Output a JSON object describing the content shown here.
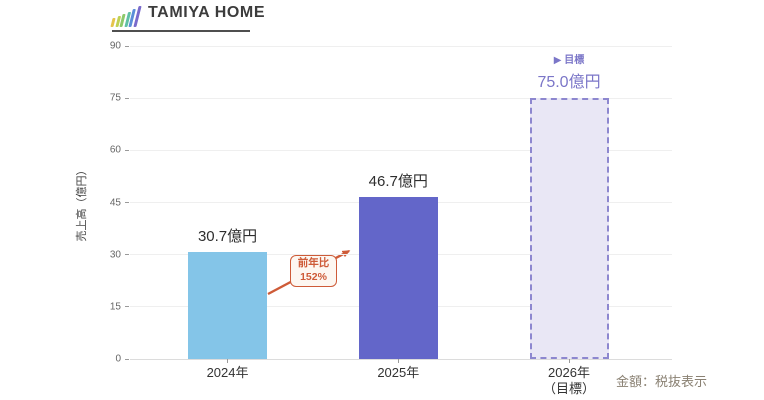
{
  "header": {
    "logo_text": "TAMIYA HOME"
  },
  "chart_data": {
    "type": "bar",
    "title": "",
    "xlabel": "",
    "ylabel": "売上高（億円）",
    "ylim": [
      0,
      90
    ],
    "yticks": [
      0,
      15,
      30,
      45,
      60,
      75,
      90
    ],
    "grid": true,
    "categories": [
      [
        "2024年"
      ],
      [
        "2025年"
      ],
      [
        "2026年",
        "（目標）"
      ]
    ],
    "values": [
      30.7,
      46.7,
      75.0
    ],
    "bar_labels": [
      "30.7億円",
      "46.7億円",
      "75.0億円"
    ],
    "bars": [
      {
        "fill": "#84C5E8",
        "dashed": false,
        "label_color": "#2e2e2e"
      },
      {
        "fill": "#6366C9",
        "dashed": false,
        "label_color": "#2e2e2e"
      },
      {
        "fill": "#E9E7F5",
        "dashed": true,
        "border_color": "#8D87CF",
        "label_color": "#7B76C8",
        "label_prefix": "▶ 目標"
      }
    ],
    "annotation": {
      "line1": "前年比",
      "line2": "152%",
      "color": "#CE5B38",
      "bg": "#FDF7F1"
    },
    "colors": {
      "grid": "#EFEFEF",
      "axis": "#DCDCDC",
      "tick_label": "#666666",
      "category_label": "#333333"
    },
    "logo_icon_bar_colors": [
      "#E5C44A",
      "#BFD152",
      "#8CC96C",
      "#5FC0A5",
      "#5B8FD9",
      "#7A6BCB"
    ]
  },
  "footer": {
    "note": "金額：税抜表示"
  }
}
